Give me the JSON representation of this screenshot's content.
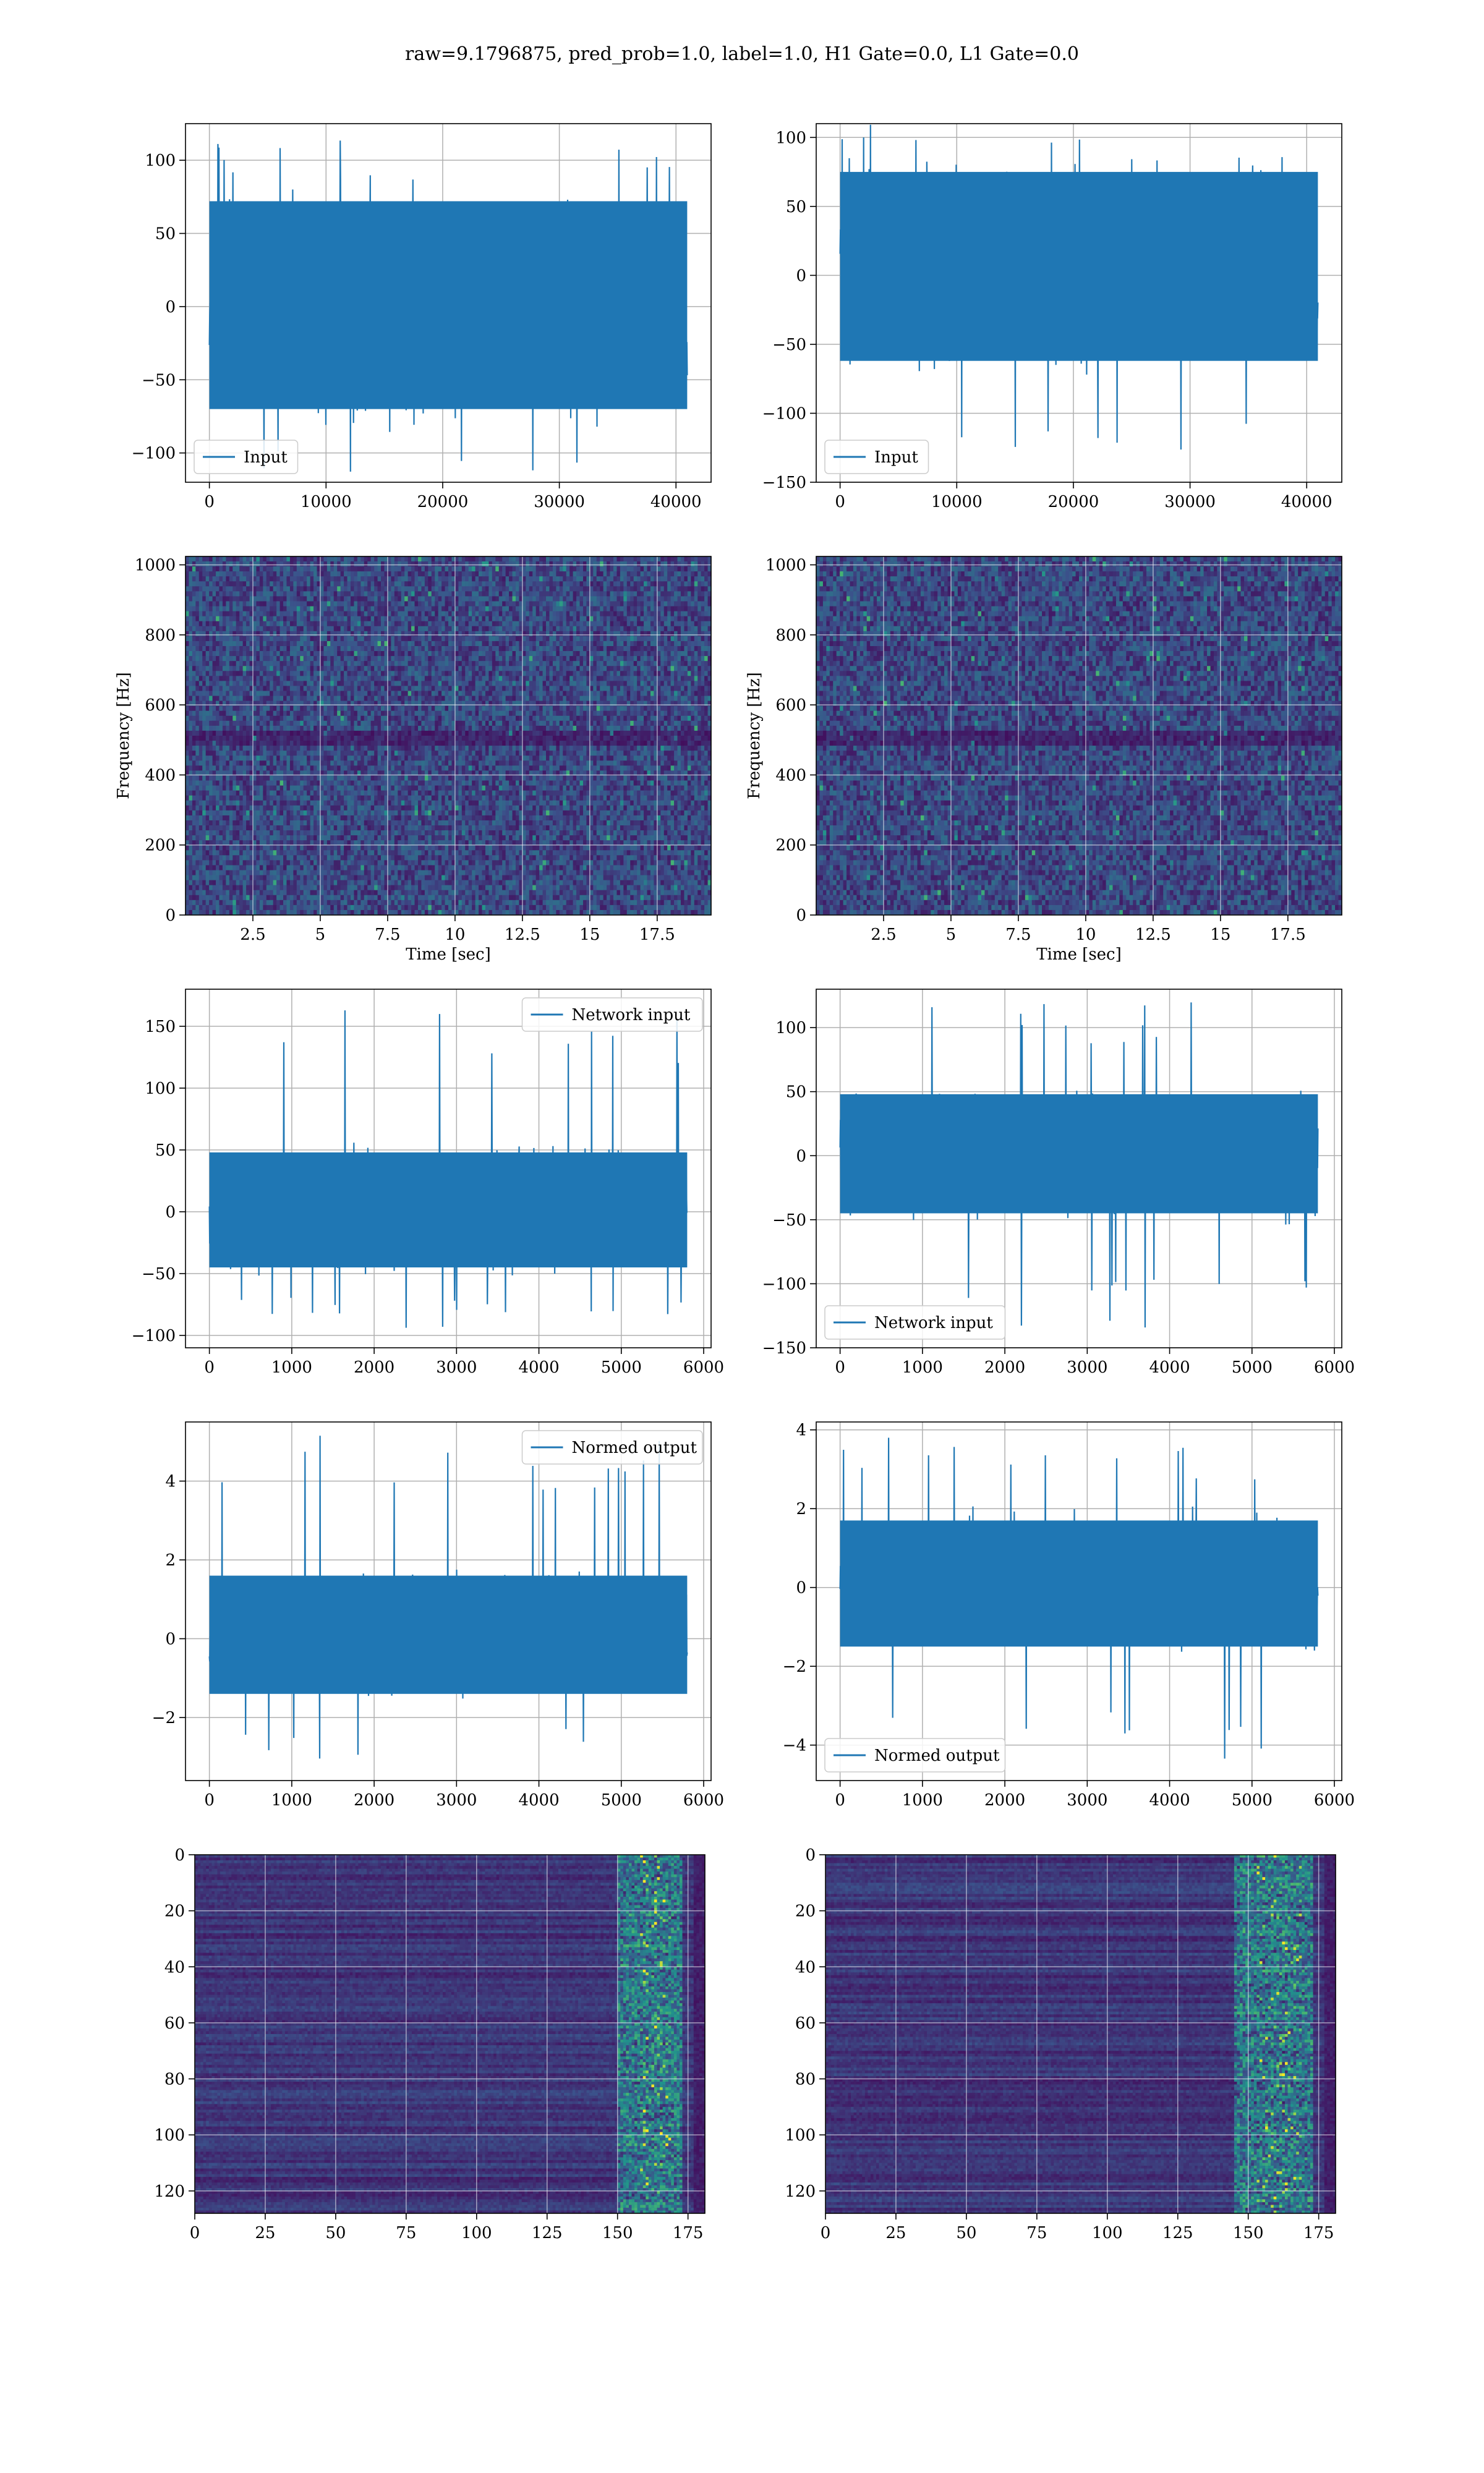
{
  "figure": {
    "suptitle": "raw=9.1796875, pred_prob=1.0, label=1.0, H1 Gate=0.0, L1 Gate=0.0",
    "colors": {
      "line": "#1f77b4",
      "grid": "#b0b0b0",
      "spec_low": "#440154",
      "spec_high": "#fde725"
    }
  },
  "chart_data": [
    {
      "type": "line",
      "id": "h1-input",
      "xlabel": "",
      "ylabel": "",
      "xlim": [
        -2048,
        43008
      ],
      "ylim": [
        -120,
        125
      ],
      "xticks": [
        0,
        10000,
        20000,
        30000,
        40000
      ],
      "yticks": [
        -100,
        -50,
        0,
        50,
        100
      ],
      "legend": {
        "label": "Input",
        "loc": "lower-left"
      },
      "series": [
        {
          "x_range": [
            0,
            40960
          ],
          "band": [
            -70,
            72
          ],
          "peaks": [
            -113,
            118
          ]
        }
      ]
    },
    {
      "type": "line",
      "id": "l1-input",
      "xlabel": "",
      "ylabel": "",
      "xlim": [
        -2048,
        43008
      ],
      "ylim": [
        -150,
        110
      ],
      "xticks": [
        0,
        10000,
        20000,
        30000,
        40000
      ],
      "yticks": [
        -150,
        -100,
        -50,
        0,
        50,
        100
      ],
      "legend": {
        "label": "Input",
        "loc": "lower-left"
      },
      "series": [
        {
          "x_range": [
            0,
            40960
          ],
          "band": [
            -62,
            75
          ],
          "peaks": [
            -137,
            110
          ]
        }
      ]
    },
    {
      "type": "heatmap",
      "id": "h1-spectrogram",
      "xlabel": "Time [sec]",
      "ylabel": "Frequency [Hz]",
      "xlim": [
        0,
        19.5
      ],
      "ylim": [
        0,
        1024
      ],
      "xticks": [
        2.5,
        5.0,
        7.5,
        10.0,
        12.5,
        15.0,
        17.5
      ],
      "yticks": [
        0,
        200,
        400,
        600,
        800,
        1000
      ]
    },
    {
      "type": "heatmap",
      "id": "l1-spectrogram",
      "xlabel": "Time [sec]",
      "ylabel": "Frequency [Hz]",
      "xlim": [
        0,
        19.5
      ],
      "ylim": [
        0,
        1024
      ],
      "xticks": [
        2.5,
        5.0,
        7.5,
        10.0,
        12.5,
        15.0,
        17.5
      ],
      "yticks": [
        0,
        200,
        400,
        600,
        800,
        1000
      ]
    },
    {
      "type": "line",
      "id": "h1-network-input",
      "xlabel": "",
      "ylabel": "",
      "xlim": [
        -290,
        6090
      ],
      "ylim": [
        -110,
        180
      ],
      "xticks": [
        0,
        1000,
        2000,
        3000,
        4000,
        5000,
        6000
      ],
      "yticks": [
        -100,
        -50,
        0,
        50,
        100,
        150
      ],
      "legend": {
        "label": "Network input",
        "loc": "upper-right"
      },
      "series": [
        {
          "x_range": [
            0,
            5800
          ],
          "band": [
            -45,
            48
          ],
          "peaks": [
            -95,
            165
          ]
        }
      ]
    },
    {
      "type": "line",
      "id": "l1-network-input",
      "xlabel": "",
      "ylabel": "",
      "xlim": [
        -290,
        6090
      ],
      "ylim": [
        -150,
        130
      ],
      "xticks": [
        0,
        1000,
        2000,
        3000,
        4000,
        5000,
        6000
      ],
      "yticks": [
        -150,
        -100,
        -50,
        0,
        50,
        100
      ],
      "legend": {
        "label": "Network input",
        "loc": "lower-left"
      },
      "series": [
        {
          "x_range": [
            0,
            5800
          ],
          "band": [
            -45,
            48
          ],
          "peaks": [
            -138,
            120
          ]
        }
      ]
    },
    {
      "type": "line",
      "id": "h1-normed-output",
      "xlabel": "",
      "ylabel": "",
      "xlim": [
        -290,
        6090
      ],
      "ylim": [
        -3.6,
        5.5
      ],
      "xticks": [
        0,
        1000,
        2000,
        3000,
        4000,
        5000,
        6000
      ],
      "yticks": [
        -2,
        0,
        2,
        4
      ],
      "legend": {
        "label": "Normed output",
        "loc": "upper-right"
      },
      "series": [
        {
          "x_range": [
            0,
            5800
          ],
          "band": [
            -1.4,
            1.6
          ],
          "peaks": [
            -3.1,
            5.3
          ]
        }
      ]
    },
    {
      "type": "line",
      "id": "l1-normed-output",
      "xlabel": "",
      "ylabel": "",
      "xlim": [
        -290,
        6090
      ],
      "ylim": [
        -4.9,
        4.2
      ],
      "xticks": [
        0,
        1000,
        2000,
        3000,
        4000,
        5000,
        6000
      ],
      "yticks": [
        -4,
        -2,
        0,
        2,
        4
      ],
      "legend": {
        "label": "Normed output",
        "loc": "lower-left"
      },
      "series": [
        {
          "x_range": [
            0,
            5800
          ],
          "band": [
            -1.5,
            1.7
          ],
          "peaks": [
            -4.4,
            3.9
          ]
        }
      ]
    },
    {
      "type": "heatmap",
      "id": "h1-features",
      "xlabel": "",
      "ylabel": "",
      "xlim": [
        0,
        181
      ],
      "ylim": [
        128,
        0
      ],
      "xticks": [
        0,
        25,
        50,
        75,
        100,
        125,
        150,
        175
      ],
      "yticks": [
        0,
        20,
        40,
        60,
        80,
        100,
        120
      ],
      "hot_column_range": [
        150,
        172
      ]
    },
    {
      "type": "heatmap",
      "id": "l1-features",
      "xlabel": "",
      "ylabel": "",
      "xlim": [
        0,
        181
      ],
      "ylim": [
        128,
        0
      ],
      "xticks": [
        0,
        25,
        50,
        75,
        100,
        125,
        150,
        175
      ],
      "yticks": [
        0,
        20,
        40,
        60,
        80,
        100,
        120
      ],
      "hot_column_range": [
        145,
        172
      ]
    }
  ]
}
